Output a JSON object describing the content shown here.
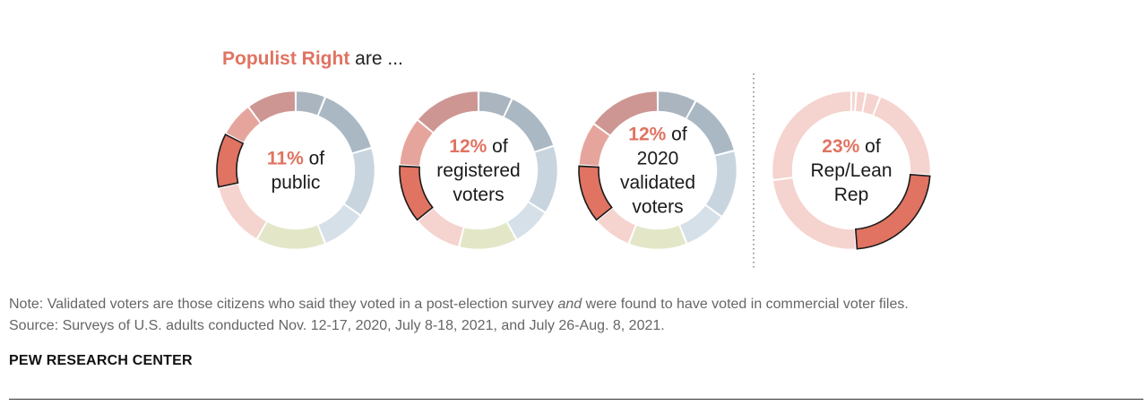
{
  "headline": {
    "highlight": "Populist Right",
    "rest": "are ..."
  },
  "colors": {
    "highlight": "#e07361",
    "outline": "#1a1a1a"
  },
  "chart_data": [
    {
      "type": "pie",
      "title": "11% of public",
      "pct_label": "11%",
      "text_lines": [
        "of",
        "public"
      ],
      "segments": [
        {
          "value": 6,
          "color": "#aab5bf"
        },
        {
          "value": 14,
          "color": "#aab8c4"
        },
        {
          "value": 14,
          "color": "#c8d5df"
        },
        {
          "value": 9,
          "color": "#d6e0e8"
        },
        {
          "value": 14,
          "color": "#e3e7c8"
        },
        {
          "value": 13,
          "color": "#f5d3ce"
        },
        {
          "value": 11,
          "color": "#e07361",
          "highlight": true
        },
        {
          "value": 7,
          "color": "#e6a59c"
        },
        {
          "value": 10,
          "color": "#cd9693"
        }
      ]
    },
    {
      "type": "pie",
      "title": "12% of registered voters",
      "pct_label": "12%",
      "text_lines": [
        "of",
        "registered",
        "voters"
      ],
      "segments": [
        {
          "value": 7,
          "color": "#aab5bf"
        },
        {
          "value": 13,
          "color": "#aab8c4"
        },
        {
          "value": 14,
          "color": "#c8d5df"
        },
        {
          "value": 8,
          "color": "#d6e0e8"
        },
        {
          "value": 12,
          "color": "#e3e7c8"
        },
        {
          "value": 10,
          "color": "#f5d3ce"
        },
        {
          "value": 12,
          "color": "#e07361",
          "highlight": true
        },
        {
          "value": 10,
          "color": "#e6a59c"
        },
        {
          "value": 14,
          "color": "#cd9693"
        }
      ]
    },
    {
      "type": "pie",
      "title": "12% of 2020 validated voters",
      "pct_label": "12%",
      "text_lines": [
        "of",
        "2020",
        "validated",
        "voters"
      ],
      "segments": [
        {
          "value": 8,
          "color": "#aab5bf"
        },
        {
          "value": 13,
          "color": "#aab8c4"
        },
        {
          "value": 14,
          "color": "#c8d5df"
        },
        {
          "value": 9,
          "color": "#d6e0e8"
        },
        {
          "value": 12,
          "color": "#e3e7c8"
        },
        {
          "value": 8,
          "color": "#f5d3ce"
        },
        {
          "value": 12,
          "color": "#e07361",
          "highlight": true
        },
        {
          "value": 9,
          "color": "#e6a59c"
        },
        {
          "value": 15,
          "color": "#cd9693"
        }
      ]
    },
    {
      "type": "pie",
      "title": "23% of Rep/Lean Rep",
      "pct_label": "23%",
      "text_lines": [
        "of",
        "Rep/Lean",
        "Rep"
      ],
      "segments": [
        {
          "value": 1,
          "color": "#f5d3ce"
        },
        {
          "value": 2,
          "color": "#f5d3ce"
        },
        {
          "value": 3,
          "color": "#f5d3ce"
        },
        {
          "value": 20,
          "color": "#f5d3ce"
        },
        {
          "value": 23,
          "color": "#e07361",
          "highlight": true
        },
        {
          "value": 24,
          "color": "#f5d3ce"
        },
        {
          "value": 27,
          "color": "#f5d3ce"
        }
      ]
    }
  ],
  "note": {
    "line1_before": "Note: Validated voters are those citizens who said they voted in a post-election survey ",
    "line1_italic": "and",
    "line1_after": " were found to have voted in commercial voter files.",
    "line2": "Source: Surveys of U.S. adults conducted Nov. 12-17, 2020, July 8-18, 2021, and July 26-Aug. 8, 2021."
  },
  "brand": "PEW RESEARCH CENTER"
}
